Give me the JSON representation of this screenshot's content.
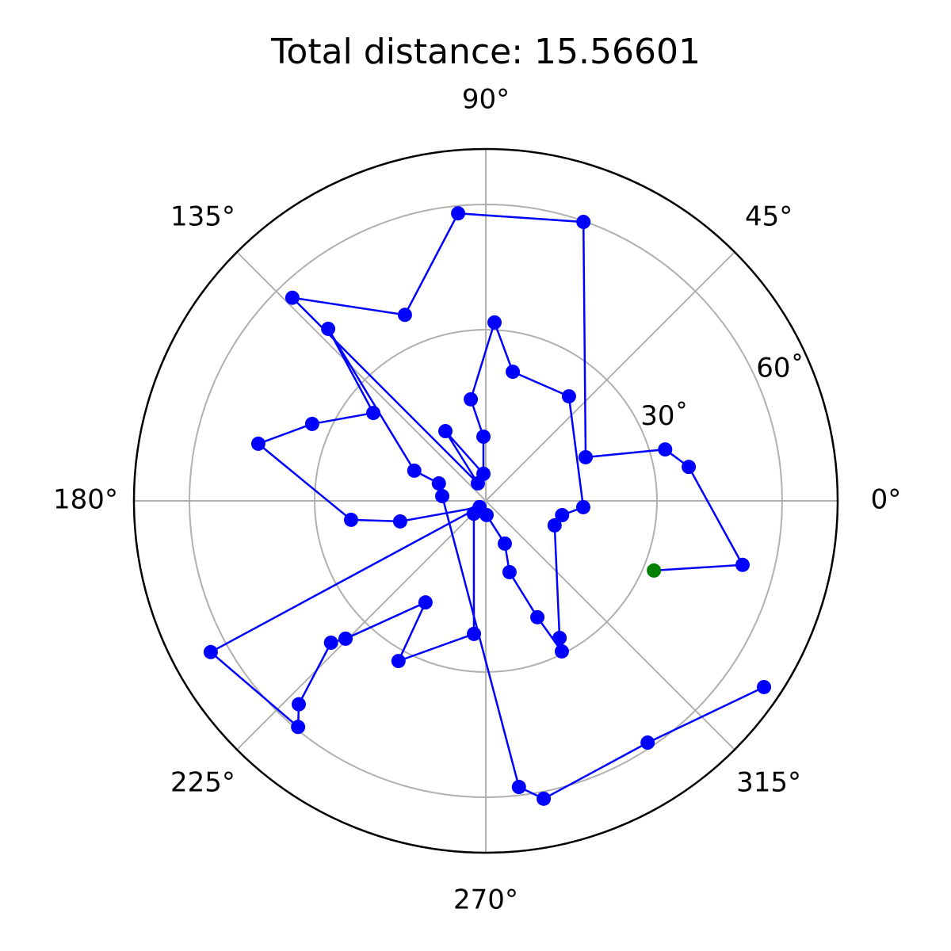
{
  "chart_data": {
    "type": "polar",
    "title": "Total distance: 15.56601",
    "xticks": [
      {
        "value": 0,
        "label": "0°"
      },
      {
        "value": 45,
        "label": "45°"
      },
      {
        "value": 90,
        "label": "90°"
      },
      {
        "value": 135,
        "label": "135°"
      },
      {
        "value": 180,
        "label": "180°"
      },
      {
        "value": 225,
        "label": "225°"
      },
      {
        "value": 270,
        "label": "270°"
      },
      {
        "value": 315,
        "label": "315°"
      }
    ],
    "ylim": [
      -11,
      73.3
    ],
    "yticks": [
      {
        "value": 30,
        "label": "30˚"
      },
      {
        "value": 60,
        "label": "60˚"
      }
    ],
    "grid": true,
    "series": [
      {
        "color": "#0000ff",
        "start_color": "#008000",
        "theta": [
          337.5,
          346.0,
          9.5,
          16.0,
          23.6,
          70.7,
          95.5,
          113.5,
          133.6,
          114.4,
          120.1,
          95.0,
          92.1,
          98.4,
          87.2,
          78.2,
          51.5,
          356.3,
          349.4,
          340.4,
          298.3,
          296.8,
          293.9,
          288.4,
          294.0,
          273.2,
          226.8,
          264.9,
          241.4,
          239.3,
          224.5,
          222.5,
          227.4,
          230.3,
          208.8,
          225.0,
          193.5,
          188.0,
          165.9,
          156.1,
          142.0,
          132.5,
          157.1,
          159.6,
          173.8,
          276.6,
          281.0,
          303.8,
          326.2
        ],
        "r": [
          32.6,
          52.4,
          38.3,
          33.7,
          15.1,
          59.8,
          58.2,
          37.6,
          56.2,
          -6.4,
          8.3,
          -4.5,
          4.4,
          13.6,
          31.8,
          20.6,
          21.0,
          12.4,
          7.6,
          6.5,
          26.3,
          29.4,
          19.5,
          7.0,
          0.2,
          -7.6,
          -6.8,
          21.0,
          32.7,
          17.3,
          36.1,
          39.3,
          55.2,
          59.4,
          64.2,
          -8.9,
          10.1,
          21.6,
          45.2,
          34.5,
          23.2,
          44.9,
          7.6,
          1.0,
          -0.5,
          58.0,
          61.7,
          58.7,
          69.2
        ]
      }
    ]
  }
}
